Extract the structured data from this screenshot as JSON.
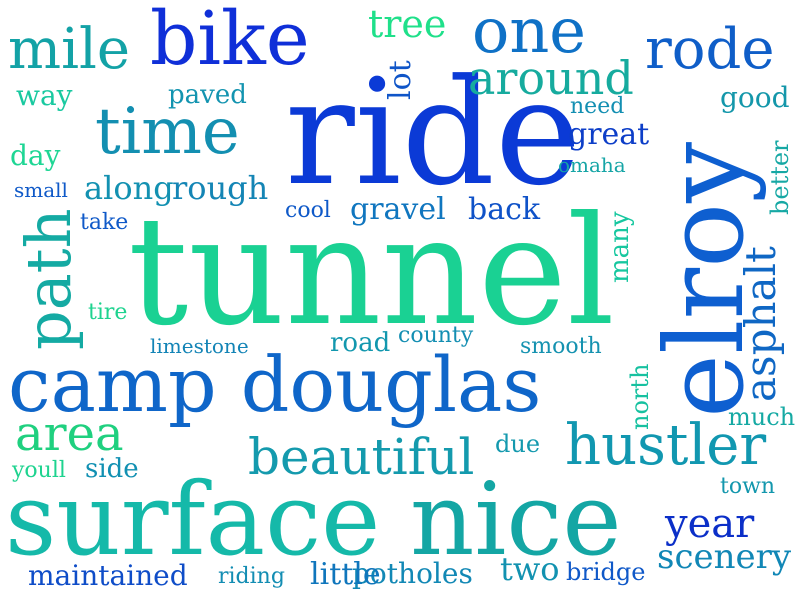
{
  "words": [
    {
      "text": "tunnel",
      "color": "#1ad193"
    },
    {
      "text": "ride",
      "color": "#0b3ad6"
    },
    {
      "text": "elroy",
      "color": "#0e5fd0"
    },
    {
      "text": "surface",
      "color": "#15b9a9"
    },
    {
      "text": "nice",
      "color": "#14a6a4"
    },
    {
      "text": "camp douglas",
      "color": "#0f66c9"
    },
    {
      "text": "bike",
      "color": "#0f2fd8"
    },
    {
      "text": "time",
      "color": "#138fb1"
    },
    {
      "text": "one",
      "color": "#0f71c6"
    },
    {
      "text": "hustler",
      "color": "#1197b0"
    },
    {
      "text": "mile",
      "color": "#13a2a6"
    },
    {
      "text": "rode",
      "color": "#0f5ec8"
    },
    {
      "text": "path",
      "color": "#14aaa3"
    },
    {
      "text": "beautiful",
      "color": "#149aad"
    },
    {
      "text": "area",
      "color": "#1fd07f"
    },
    {
      "text": "around",
      "color": "#16ab9e"
    },
    {
      "text": "asphalt",
      "color": "#0f67c4"
    },
    {
      "text": "year",
      "color": "#0b2fc8"
    },
    {
      "text": "tree",
      "color": "#1fe08a"
    },
    {
      "text": "scenery",
      "color": "#1187b6"
    },
    {
      "text": "along",
      "color": "#1391b1"
    },
    {
      "text": "rough",
      "color": "#1485b5"
    },
    {
      "text": "great",
      "color": "#0d3ec8"
    },
    {
      "text": "gravel",
      "color": "#1076bf"
    },
    {
      "text": "back",
      "color": "#0f52c8"
    },
    {
      "text": "maintained",
      "color": "#0f4dc8"
    },
    {
      "text": "two",
      "color": "#1292b0"
    },
    {
      "text": "potholes",
      "color": "#1288b5"
    },
    {
      "text": "little",
      "color": "#1076bc"
    },
    {
      "text": "lot",
      "color": "#0f55c8"
    },
    {
      "text": "good",
      "color": "#1497aa"
    },
    {
      "text": "paved",
      "color": "#1394b0"
    },
    {
      "text": "way",
      "color": "#19c9a0"
    },
    {
      "text": "day",
      "color": "#1ed694"
    },
    {
      "text": "many",
      "color": "#16c79f"
    },
    {
      "text": "road",
      "color": "#1297ae"
    },
    {
      "text": "smooth",
      "color": "#1592b0"
    },
    {
      "text": "limestone",
      "color": "#1384b6"
    },
    {
      "text": "county",
      "color": "#138eb2"
    },
    {
      "text": "side",
      "color": "#1190b2"
    },
    {
      "text": "due",
      "color": "#1499ae"
    },
    {
      "text": "riding",
      "color": "#138db3"
    },
    {
      "text": "bridge",
      "color": "#0f58c8"
    },
    {
      "text": "better",
      "color": "#16a8a4"
    },
    {
      "text": "north",
      "color": "#16c1a0"
    },
    {
      "text": "much",
      "color": "#15a9a3"
    },
    {
      "text": "town",
      "color": "#1397ad"
    },
    {
      "text": "youll",
      "color": "#1ed38f"
    },
    {
      "text": "tire",
      "color": "#1ed38f"
    },
    {
      "text": "take",
      "color": "#0f59c8"
    },
    {
      "text": "cool",
      "color": "#0f59c8"
    },
    {
      "text": "small",
      "color": "#0f59c8"
    },
    {
      "text": "need",
      "color": "#138fb2"
    },
    {
      "text": "omaha",
      "color": "#16a5a6"
    }
  ]
}
